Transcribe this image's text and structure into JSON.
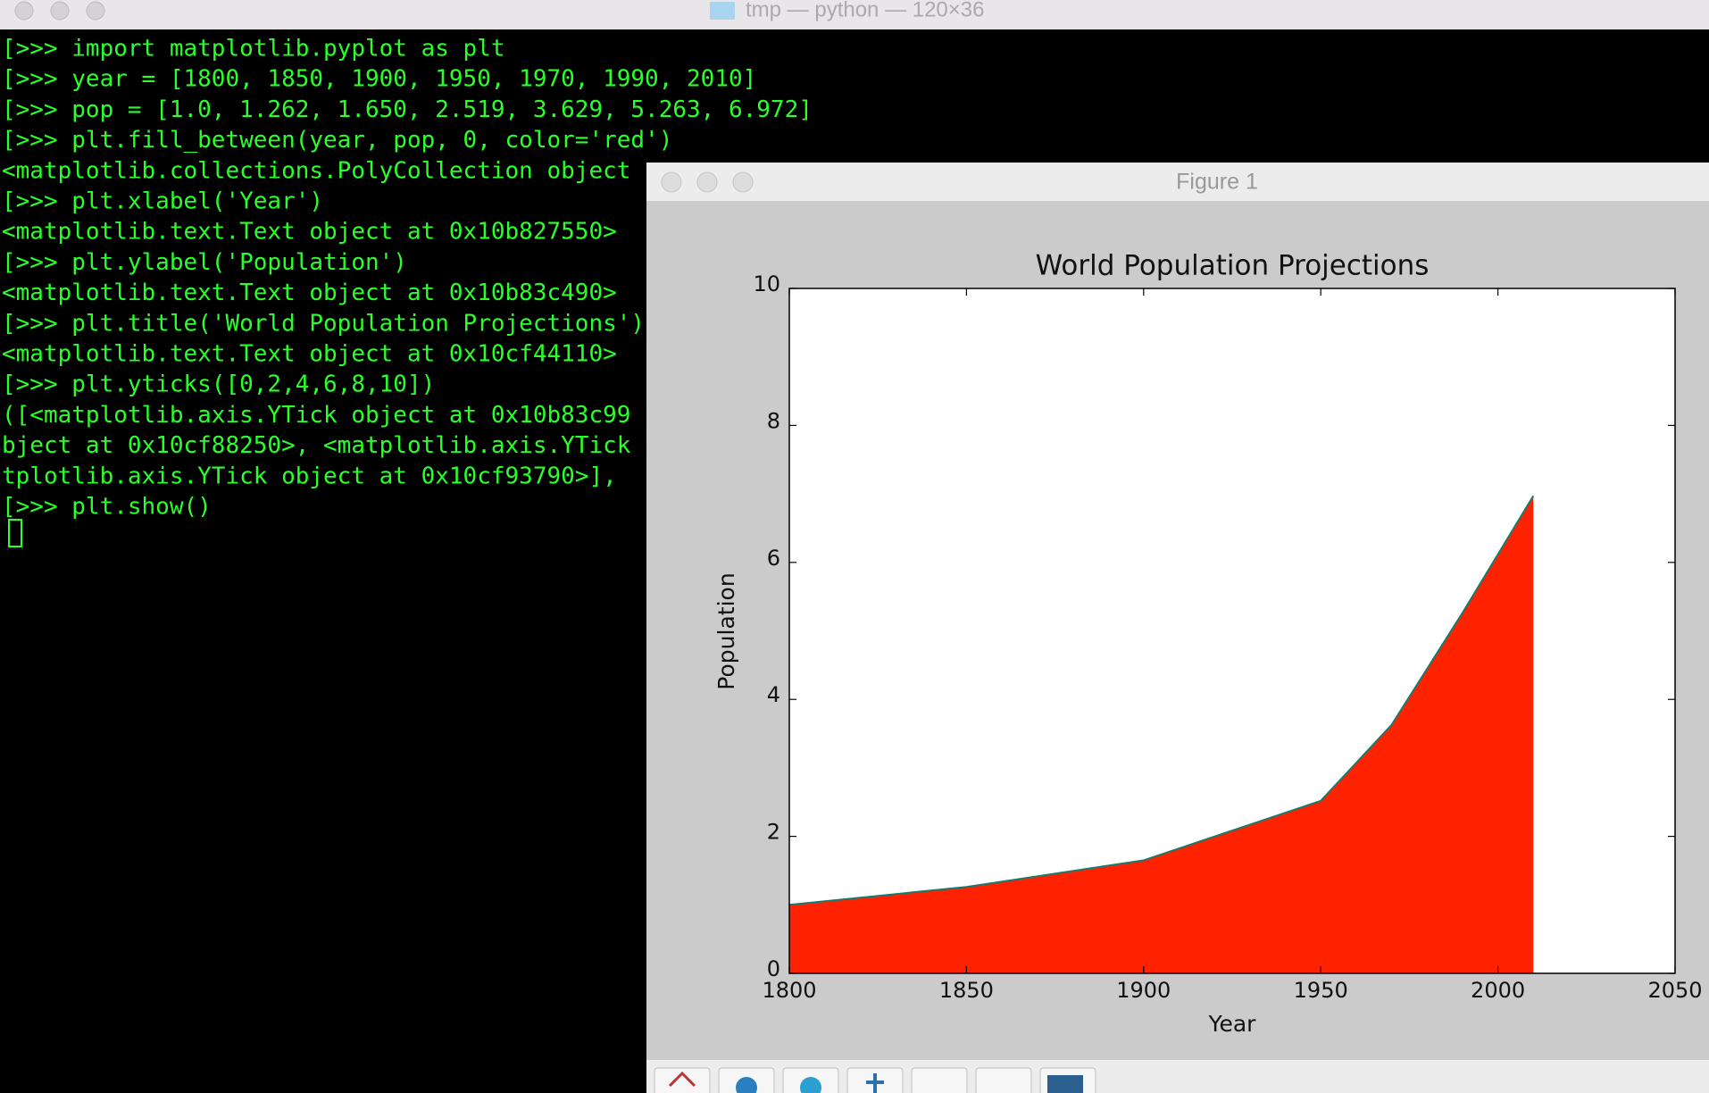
{
  "terminal": {
    "title": "tmp — python — 120×36",
    "lines": [
      "[>>> import matplotlib.pyplot as plt",
      "[>>> year = [1800, 1850, 1900, 1950, 1970, 1990, 2010]",
      "[>>> pop = [1.0, 1.262, 1.650, 2.519, 3.629, 5.263, 6.972]",
      "[>>> plt.fill_between(year, pop, 0, color='red')",
      "<matplotlib.collections.PolyCollection object",
      "[>>> plt.xlabel('Year')",
      "<matplotlib.text.Text object at 0x10b827550>",
      "[>>> plt.ylabel('Population')",
      "<matplotlib.text.Text object at 0x10b83c490>",
      "[>>> plt.title('World Population Projections')",
      "<matplotlib.text.Text object at 0x10cf44110>",
      "[>>> plt.yticks([0,2,4,6,8,10])",
      "([<matplotlib.axis.YTick object at 0x10b83c99",
      "bject at 0x10cf88250>, <matplotlib.axis.YTick",
      "tplotlib.axis.YTick object at 0x10cf93790>],",
      "[>>> plt.show()"
    ]
  },
  "figure_window": {
    "title": "Figure 1"
  },
  "chart_data": {
    "type": "area",
    "title": "World Population Projections",
    "x_label": "Year",
    "y_label": "Population",
    "x": [
      1800,
      1850,
      1900,
      1950,
      1970,
      1990,
      2010
    ],
    "values": [
      1.0,
      1.262,
      1.65,
      2.519,
      3.629,
      5.263,
      6.972
    ],
    "color": "#ff2200",
    "edge_color": "#1a7a6a",
    "xlim": [
      1800,
      2050
    ],
    "xticks": [
      1800,
      1850,
      1900,
      1950,
      2000,
      2050
    ],
    "ylim": [
      0,
      10
    ],
    "yticks": [
      0,
      2,
      4,
      6,
      8,
      10
    ]
  }
}
